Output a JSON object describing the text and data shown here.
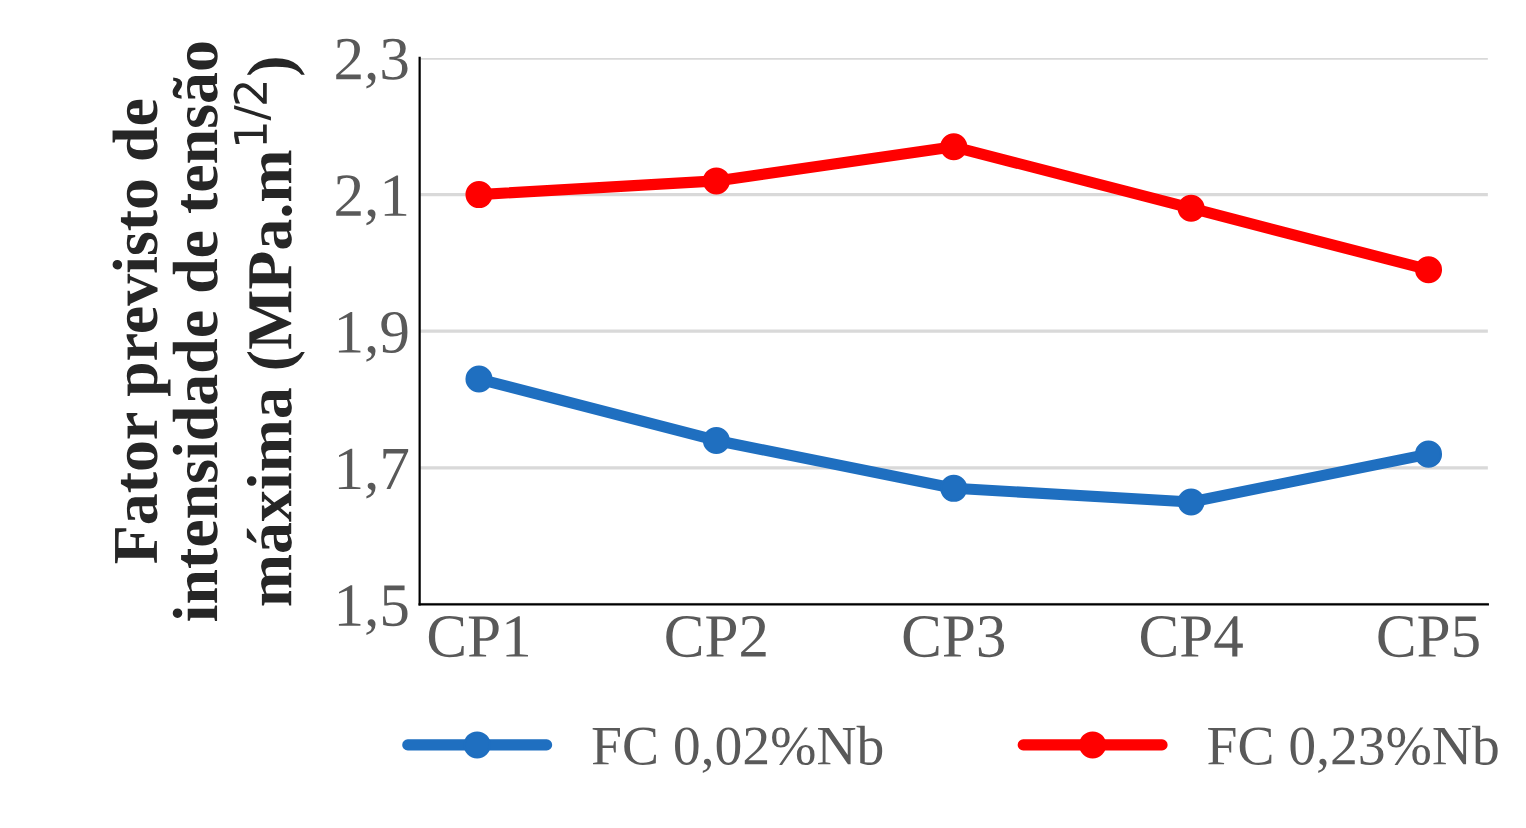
{
  "chart_data": {
    "type": "line",
    "ylabel": "Fator previsto de intensidade de tensão máxima (MPa.m$^{1/2}$)",
    "categories": [
      "CP1",
      "CP2",
      "CP3",
      "CP4",
      "CP5"
    ],
    "series": [
      {
        "name": "FC 0,02%Nb",
        "color": "#1f6fc0",
        "values": [
          1.83,
          1.74,
          1.67,
          1.65,
          1.72
        ]
      },
      {
        "name": "FC 0,23%Nb",
        "color": "#ff0000",
        "values": [
          2.1,
          2.12,
          2.17,
          2.08,
          1.99
        ]
      }
    ],
    "ylim": [
      1.5,
      2.3
    ],
    "yticks": [
      {
        "value": 1.5,
        "label": "1,5"
      },
      {
        "value": 1.7,
        "label": "1,7"
      },
      {
        "value": 1.9,
        "label": "1,9"
      },
      {
        "value": 2.1,
        "label": "2,1"
      },
      {
        "value": 2.3,
        "label": "2,3"
      }
    ],
    "grid": "y",
    "legend": "bottom",
    "marker": "circle",
    "line_style": "solid"
  }
}
